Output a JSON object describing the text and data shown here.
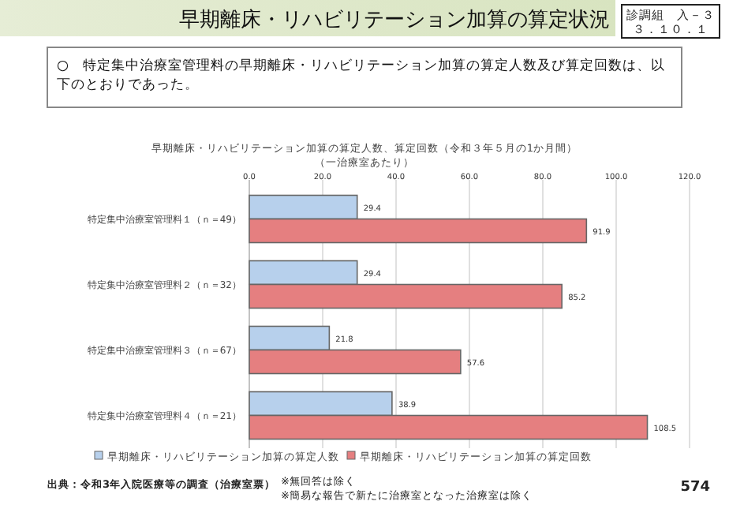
{
  "chart_data": {
    "type": "bar",
    "orientation": "horizontal",
    "title": "早期離床・リハビリテーション加算の算定状況",
    "subtitle": "早期離床・リハビリテーション加算の算定人数、算定回数（令和３年５月の1か月間）",
    "annotations": [
      "診調組　入－３",
      "３．１０．１",
      "○　特定集中治療室管理料の早期離床・リハビリテーション加算の算定人数及び算定回数は、以下のとおりであった。",
      "（一治療室あたり）",
      "出典：令和3年入院医療等の調査（治療室票）",
      "※無回答は除く",
      "※簡易な報告で新たに治療室となった治療室は除く",
      "574"
    ],
    "categories": [
      "特定集中治療室管理料１（ｎ＝49）",
      "特定集中治療室管理料２（ｎ＝32）",
      "特定集中治療室管理料３（ｎ＝67）",
      "特定集中治療室管理料４（ｎ＝21）"
    ],
    "series": [
      {
        "name": "早期離床・リハビリテーション加算の算定人数",
        "color": "#b7d0ec",
        "values": [
          29.4,
          29.4,
          21.8,
          38.9
        ]
      },
      {
        "name": "早期離床・リハビリテーション加算の算定回数",
        "color": "#e57f80",
        "values": [
          91.9,
          85.2,
          57.6,
          108.5
        ]
      }
    ],
    "xlim": [
      0,
      120
    ],
    "xticks": [
      {
        "value": 0,
        "label": "0.0"
      },
      {
        "value": 20,
        "label": "20.0"
      },
      {
        "value": 40,
        "label": "40.0"
      },
      {
        "value": 60,
        "label": "60.0"
      },
      {
        "value": 80,
        "label": "80.0"
      },
      {
        "value": 100,
        "label": "100.0"
      },
      {
        "value": 120,
        "label": "120.0"
      }
    ],
    "grid": "x",
    "legend": "bottom",
    "data_labels": true
  }
}
